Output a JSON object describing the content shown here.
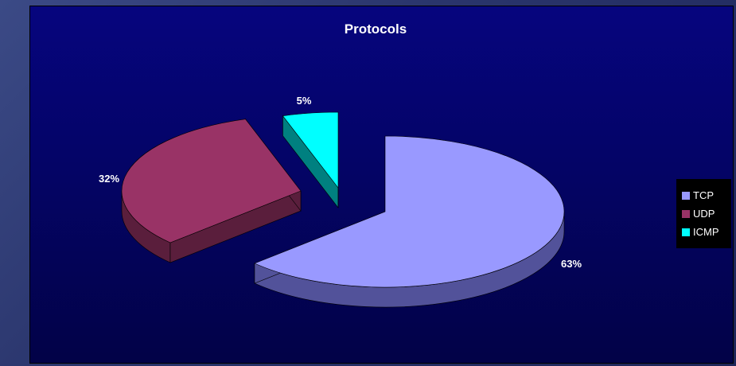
{
  "chart_data": {
    "type": "pie",
    "title": "Protocols",
    "slices": [
      {
        "label": "TCP",
        "value": 63,
        "display": "63%",
        "color": "#9999ff",
        "side_color": "#52529a"
      },
      {
        "label": "UDP",
        "value": 32,
        "display": "32%",
        "color": "#993366",
        "side_color": "#5a1e3c"
      },
      {
        "label": "ICMP",
        "value": 5,
        "display": "5%",
        "color": "#00ffff",
        "side_color": "#008080"
      }
    ],
    "legend": {
      "position": "right"
    },
    "three_d": true,
    "exploded": true
  }
}
